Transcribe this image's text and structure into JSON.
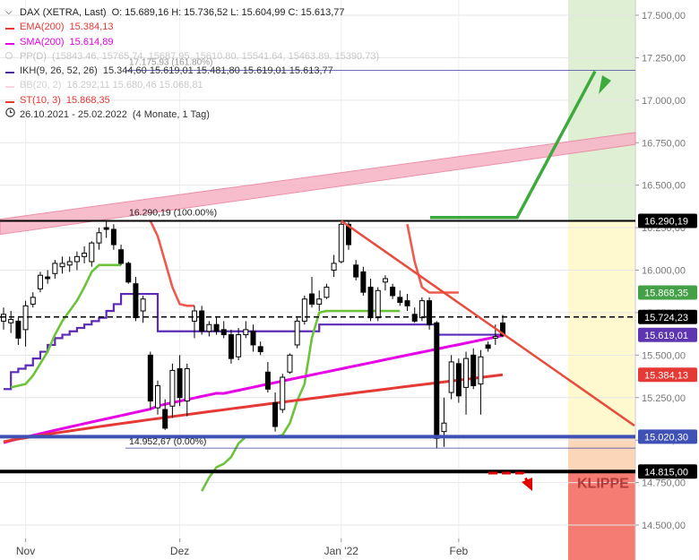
{
  "legend": {
    "title": "DAX (XETRA, Last)",
    "ohlc": "O: 15.689,16   H: 15.736,52   L: 15.604,99   C: 15.613,77",
    "rows": [
      {
        "name": "EMA(200)",
        "values": "15.384,13",
        "color": "#e53935",
        "name_color": "#e53935",
        "faded": false,
        "icon": "line"
      },
      {
        "name": "SMA(200)",
        "values": "15.614,89",
        "color": "#e600e6",
        "name_color": "#e600e6",
        "faded": false,
        "icon": "line"
      },
      {
        "name": "PP(D)",
        "values": "(15843.46, 15765.74, 15687.95, 15610.80, 15541.64, 15463.89, 15390.73)",
        "color": "#9e9e9e",
        "name_color": "#777",
        "faded": true,
        "icon": "dot"
      },
      {
        "name": "IKH(9, 26, 52, 26)",
        "values": "15.344,60  15.619,01  15.481,80  15.619,01  15.613,77",
        "color": "#4a2a9a",
        "name_color": "#333",
        "faded": false,
        "icon": "line"
      },
      {
        "name": "BB(20, 2)",
        "values": "16.292,11  15.680,46  15.068,81",
        "color": "#f3a6b8",
        "name_color": "#999",
        "faded": true,
        "icon": "line"
      },
      {
        "name": "ST(10, 3)",
        "values": "15.868,35",
        "color": "#e53935",
        "name_color": "#e53935",
        "faded": false,
        "icon": "line"
      },
      {
        "name": "26.10.2021 - 25.02.2022",
        "values": "(4 Monate, 1 Tag)",
        "color": "#333",
        "name_color": "#333",
        "faded": false,
        "icon": "clock"
      }
    ],
    "overlay_text": "17.175,93 (161.80%)"
  },
  "chart_data": {
    "type": "candlestick",
    "title": "DAX (XETRA, Last)",
    "period": "26.10.2021 - 25.02.2022",
    "y_axis": {
      "range": [
        14360,
        17600
      ],
      "ticks": [
        14500,
        14750,
        15000,
        15250,
        15500,
        15750,
        16000,
        16250,
        16500,
        16750,
        17000,
        17250,
        17500
      ],
      "tick_labels": [
        "14.500,00",
        "14.750,00",
        "15.000,00",
        "15.250,00",
        "15.500,00",
        "15.750,00",
        "16.000,00",
        "16.250,00",
        "16.500,00",
        "16.750,00",
        "17.000,00",
        "17.250,00",
        "17.500,00"
      ]
    },
    "x_axis": {
      "labels": [
        "Nov",
        "Dez",
        "Jan '22",
        "Feb"
      ]
    },
    "price_tags": [
      {
        "label": "16.290,19",
        "value": 16290.19,
        "bg": "#000000",
        "fg": "#ffffff"
      },
      {
        "label": "15.868,35",
        "value": 15868.35,
        "bg": "#43a047",
        "fg": "#ffffff"
      },
      {
        "label": "15.724,23",
        "value": 15724.23,
        "bg": "#000000",
        "fg": "#ffffff"
      },
      {
        "label": "15.619,01",
        "value": 15619.01,
        "bg": "#5e35b1",
        "fg": "#ffffff"
      },
      {
        "label": "15.384,13",
        "value": 15384.13,
        "bg": "#e53935",
        "fg": "#ffffff"
      },
      {
        "label": "15.020,30",
        "value": 15020.3,
        "bg": "#3f51b5",
        "fg": "#ffffff"
      },
      {
        "label": "14.815,00",
        "value": 14815.0,
        "bg": "#000000",
        "fg": "#ffffff"
      }
    ],
    "annotations": {
      "fib_top": "16.290,19 (100.00%)",
      "fib_bottom": "14.952,67 (0.00%)",
      "klippe": "KLIPPE"
    },
    "candles": [
      {
        "o": 15700,
        "h": 15780,
        "l": 15650,
        "c": 15740
      },
      {
        "o": 15690,
        "h": 15760,
        "l": 15630,
        "c": 15710
      },
      {
        "o": 15700,
        "h": 15720,
        "l": 15560,
        "c": 15600
      },
      {
        "o": 15650,
        "h": 15820,
        "l": 15550,
        "c": 15790
      },
      {
        "o": 15800,
        "h": 15870,
        "l": 15780,
        "c": 15840
      },
      {
        "o": 15890,
        "h": 15990,
        "l": 15870,
        "c": 15970
      },
      {
        "o": 15960,
        "h": 16000,
        "l": 15920,
        "c": 15950
      },
      {
        "o": 15980,
        "h": 16060,
        "l": 15950,
        "c": 16040
      },
      {
        "o": 16020,
        "h": 16080,
        "l": 15980,
        "c": 16040
      },
      {
        "o": 16030,
        "h": 16080,
        "l": 15990,
        "c": 16050
      },
      {
        "o": 16050,
        "h": 16110,
        "l": 16000,
        "c": 16080
      },
      {
        "o": 16080,
        "h": 16140,
        "l": 16040,
        "c": 16100
      },
      {
        "o": 16050,
        "h": 16170,
        "l": 16020,
        "c": 16160
      },
      {
        "o": 16160,
        "h": 16250,
        "l": 16120,
        "c": 16220
      },
      {
        "o": 16250,
        "h": 16290,
        "l": 16190,
        "c": 16240
      },
      {
        "o": 16240,
        "h": 16270,
        "l": 16120,
        "c": 16150
      },
      {
        "o": 16120,
        "h": 16150,
        "l": 16030,
        "c": 16040
      },
      {
        "o": 16040,
        "h": 16050,
        "l": 15920,
        "c": 15930
      },
      {
        "o": 15920,
        "h": 15960,
        "l": 15700,
        "c": 15720
      },
      {
        "o": 15760,
        "h": 15850,
        "l": 15690,
        "c": 15830
      },
      {
        "o": 15500,
        "h": 15520,
        "l": 15180,
        "c": 15230
      },
      {
        "o": 15190,
        "h": 15350,
        "l": 15150,
        "c": 15320
      },
      {
        "o": 15180,
        "h": 15240,
        "l": 15060,
        "c": 15070
      },
      {
        "o": 15200,
        "h": 15450,
        "l": 15130,
        "c": 15410
      },
      {
        "o": 15420,
        "h": 15500,
        "l": 15200,
        "c": 15250
      },
      {
        "o": 15230,
        "h": 15450,
        "l": 15140,
        "c": 15420
      },
      {
        "o": 15700,
        "h": 15790,
        "l": 15600,
        "c": 15760
      },
      {
        "o": 15760,
        "h": 15790,
        "l": 15620,
        "c": 15640
      },
      {
        "o": 15640,
        "h": 15700,
        "l": 15610,
        "c": 15680
      },
      {
        "o": 15680,
        "h": 15720,
        "l": 15620,
        "c": 15640
      },
      {
        "o": 15650,
        "h": 15700,
        "l": 15600,
        "c": 15620
      },
      {
        "o": 15620,
        "h": 15650,
        "l": 15450,
        "c": 15480
      },
      {
        "o": 15490,
        "h": 15660,
        "l": 15470,
        "c": 15620
      },
      {
        "o": 15620,
        "h": 15700,
        "l": 15600,
        "c": 15650
      },
      {
        "o": 15640,
        "h": 15680,
        "l": 15520,
        "c": 15560
      },
      {
        "o": 15550,
        "h": 15580,
        "l": 15500,
        "c": 15520
      },
      {
        "o": 15400,
        "h": 15460,
        "l": 15280,
        "c": 15300
      },
      {
        "o": 15220,
        "h": 15280,
        "l": 15050,
        "c": 15080
      },
      {
        "o": 15180,
        "h": 15390,
        "l": 15160,
        "c": 15370
      },
      {
        "o": 15400,
        "h": 15510,
        "l": 15390,
        "c": 15500
      },
      {
        "o": 15560,
        "h": 15720,
        "l": 15540,
        "c": 15700
      },
      {
        "o": 15700,
        "h": 15850,
        "l": 15680,
        "c": 15830
      },
      {
        "o": 15860,
        "h": 15960,
        "l": 15780,
        "c": 15800
      },
      {
        "o": 15800,
        "h": 15880,
        "l": 15760,
        "c": 15830
      },
      {
        "o": 15840,
        "h": 15920,
        "l": 15830,
        "c": 15900
      },
      {
        "o": 16000,
        "h": 16090,
        "l": 15960,
        "c": 16040
      },
      {
        "o": 16050,
        "h": 16290,
        "l": 16040,
        "c": 16270
      },
      {
        "o": 16270,
        "h": 16290,
        "l": 16120,
        "c": 16150
      },
      {
        "o": 16030,
        "h": 16060,
        "l": 15940,
        "c": 15960
      },
      {
        "o": 15990,
        "h": 16020,
        "l": 15850,
        "c": 15870
      },
      {
        "o": 15900,
        "h": 15950,
        "l": 15700,
        "c": 15720
      },
      {
        "o": 15720,
        "h": 15900,
        "l": 15700,
        "c": 15880
      },
      {
        "o": 15930,
        "h": 15970,
        "l": 15880,
        "c": 15950
      },
      {
        "o": 15900,
        "h": 15920,
        "l": 15830,
        "c": 15850
      },
      {
        "o": 15840,
        "h": 15880,
        "l": 15790,
        "c": 15810
      },
      {
        "o": 15820,
        "h": 15860,
        "l": 15760,
        "c": 15790
      },
      {
        "o": 15740,
        "h": 15780,
        "l": 15690,
        "c": 15700
      },
      {
        "o": 15720,
        "h": 15840,
        "l": 15700,
        "c": 15820
      },
      {
        "o": 15820,
        "h": 15840,
        "l": 15650,
        "c": 15680
      },
      {
        "o": 15690,
        "h": 15700,
        "l": 14950,
        "c": 15010
      },
      {
        "o": 15050,
        "h": 15250,
        "l": 14960,
        "c": 15100
      },
      {
        "o": 15280,
        "h": 15500,
        "l": 15240,
        "c": 15460
      },
      {
        "o": 15450,
        "h": 15480,
        "l": 15220,
        "c": 15260
      },
      {
        "o": 15310,
        "h": 15520,
        "l": 15150,
        "c": 15480
      },
      {
        "o": 15500,
        "h": 15540,
        "l": 15300,
        "c": 15320
      },
      {
        "o": 15330,
        "h": 15530,
        "l": 15150,
        "c": 15490
      },
      {
        "o": 15560,
        "h": 15580,
        "l": 15520,
        "c": 15540
      },
      {
        "o": 15600,
        "h": 15680,
        "l": 15560,
        "c": 15610
      },
      {
        "o": 15689.16,
        "h": 15736.52,
        "l": 15604.99,
        "c": 15613.77
      }
    ]
  }
}
